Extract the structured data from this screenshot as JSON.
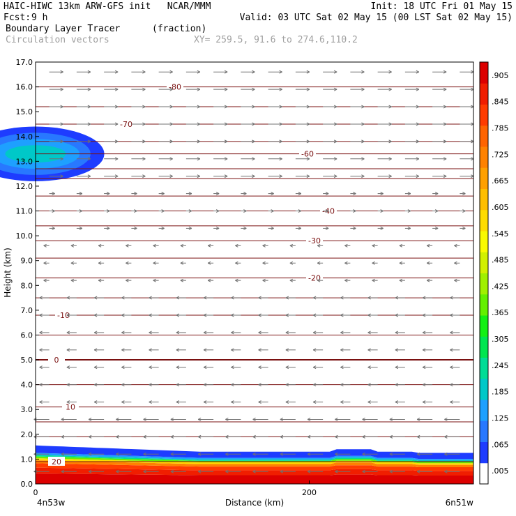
{
  "header": {
    "title": "HAIC-HIWC 13km ARW-GFS init   NCAR/MMM",
    "init": "Init: 18 UTC Fri 01 May 15",
    "fcst_label": "Fcst:",
    "fcst_value": "9 h",
    "valid": "Valid: 03 UTC Sat 02 May 15 (00 LST Sat 02 May 15)",
    "field1": "Boundary Layer Tracer",
    "field1_units": "(fraction)",
    "field2": "Circulation vectors",
    "xy_range": "XY= 259.5, 91.6 to 274.6,110.2"
  },
  "chart_data": {
    "type": "heatmap",
    "ylabel": "Height (km)",
    "xlabel": "Distance (km)",
    "x_start_label": "4n53w",
    "x_end_label": "6n51w",
    "xlim": [
      0,
      320
    ],
    "ylim": [
      0,
      17
    ],
    "x_ticks": [
      0,
      200
    ],
    "y_ticks": [
      "0.0",
      "1.0",
      "2.0",
      "3.0",
      "4.0",
      "5.0",
      "6.0",
      "7.0",
      "8.0",
      "9.0",
      "10.0",
      "11.0",
      "12.0",
      "13.0",
      "14.0",
      "15.0",
      "16.0",
      "17.0"
    ],
    "colorbar_labels": [
      ".005",
      ".065",
      ".125",
      ".185",
      ".245",
      ".305",
      ".365",
      ".425",
      ".485",
      ".545",
      ".605",
      ".665",
      ".725",
      ".785",
      ".845",
      ".905"
    ],
    "colorbar_colors": [
      "#ffffff",
      "#1e3cff",
      "#2878ff",
      "#1ea0ff",
      "#00c8c8",
      "#00dc96",
      "#00e650",
      "#14f014",
      "#64f000",
      "#a0f000",
      "#d2f000",
      "#fafa00",
      "#ffdc00",
      "#ffbe00",
      "#ffa000",
      "#ff8200",
      "#ff6400",
      "#ff3c00",
      "#f01e00",
      "#dc0000"
    ],
    "temperature_contours": [
      {
        "label": "-80",
        "y": 16.0
      },
      {
        "label": "-70",
        "y": 14.5
      },
      {
        "label": "-60",
        "y": 13.3
      },
      {
        "label": "-40",
        "y": 11.0
      },
      {
        "label": "-30",
        "y": 9.8
      },
      {
        "label": "-20",
        "y": 8.3
      },
      {
        "label": "-10",
        "y": 6.8
      },
      {
        "label": "0",
        "y": 5.0
      },
      {
        "label": "10",
        "y": 3.1
      },
      {
        "label": "20",
        "y": 0.9
      }
    ]
  }
}
